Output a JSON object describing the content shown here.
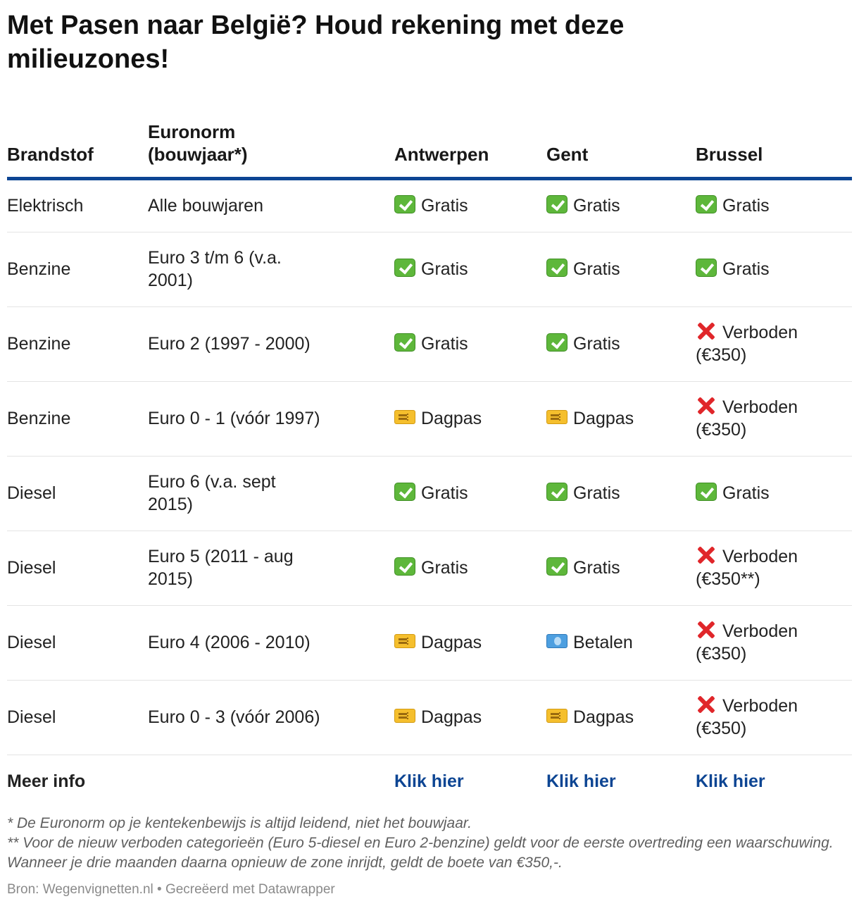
{
  "title": "Met Pasen naar België? Houd rekening met deze milieuzones!",
  "colors": {
    "accent": "#0d4593",
    "check": "#5eb73b",
    "cross": "#e0262a",
    "ticket": "#f5bf2d",
    "money": "#4d9fe0"
  },
  "table": {
    "headers": {
      "fuel": "Brandstof",
      "norm": "Euronorm (bouwjaar*)",
      "antwerpen": "Antwerpen",
      "gent": "Gent",
      "brussel": "Brussel"
    },
    "rows": [
      {
        "fuel": "Elektrisch",
        "norm": "Alle bouwjaren",
        "antwerpen": {
          "icon": "check-icon",
          "text": "Gratis"
        },
        "gent": {
          "icon": "check-icon",
          "text": "Gratis"
        },
        "brussel": {
          "icon": "check-icon",
          "text": "Gratis"
        }
      },
      {
        "fuel": "Benzine",
        "norm": "Euro 3 t/m 6 (v.a. 2001)",
        "antwerpen": {
          "icon": "check-icon",
          "text": "Gratis"
        },
        "gent": {
          "icon": "check-icon",
          "text": "Gratis"
        },
        "brussel": {
          "icon": "check-icon",
          "text": "Gratis"
        }
      },
      {
        "fuel": "Benzine",
        "norm": "Euro 2 (1997 - 2000)",
        "antwerpen": {
          "icon": "check-icon",
          "text": "Gratis"
        },
        "gent": {
          "icon": "check-icon",
          "text": "Gratis"
        },
        "brussel": {
          "icon": "cross-icon",
          "text": "Verboden (€350)"
        }
      },
      {
        "fuel": "Benzine",
        "norm": "Euro 0 - 1 (vóór 1997)",
        "antwerpen": {
          "icon": "ticket-icon",
          "text": "Dagpas"
        },
        "gent": {
          "icon": "ticket-icon",
          "text": "Dagpas"
        },
        "brussel": {
          "icon": "cross-icon",
          "text": "Verboden (€350)"
        }
      },
      {
        "fuel": "Diesel",
        "norm": "Euro 6 (v.a. sept 2015)",
        "antwerpen": {
          "icon": "check-icon",
          "text": "Gratis"
        },
        "gent": {
          "icon": "check-icon",
          "text": "Gratis"
        },
        "brussel": {
          "icon": "check-icon",
          "text": "Gratis"
        }
      },
      {
        "fuel": "Diesel",
        "norm": "Euro 5 (2011 - aug 2015)",
        "antwerpen": {
          "icon": "check-icon",
          "text": "Gratis"
        },
        "gent": {
          "icon": "check-icon",
          "text": "Gratis"
        },
        "brussel": {
          "icon": "cross-icon",
          "text": "Verboden (€350**)"
        }
      },
      {
        "fuel": "Diesel",
        "norm": "Euro 4 (2006 - 2010)",
        "antwerpen": {
          "icon": "ticket-icon",
          "text": "Dagpas"
        },
        "gent": {
          "icon": "money-icon",
          "text": "Betalen"
        },
        "brussel": {
          "icon": "cross-icon",
          "text": "Verboden (€350)"
        }
      },
      {
        "fuel": "Diesel",
        "norm": "Euro 0 - 3 (vóór 2006)",
        "antwerpen": {
          "icon": "ticket-icon",
          "text": "Dagpas"
        },
        "gent": {
          "icon": "ticket-icon",
          "text": "Dagpas"
        },
        "brussel": {
          "icon": "cross-icon",
          "text": "Verboden (€350)"
        }
      }
    ],
    "info_row": {
      "label": "Meer info",
      "antwerpen_link": "Klik hier",
      "gent_link": "Klik hier",
      "brussel_link": "Klik hier"
    }
  },
  "notes": {
    "note1": "* De Euronorm op je kentekenbewijs is altijd leidend, niet het bouwjaar.",
    "note2": "** Voor de nieuw verboden categorieën (Euro 5-diesel en Euro 2-benzine) geldt voor de eerste overtreding een waarschuwing. Wanneer je drie maanden daarna opnieuw de zone inrijdt, geldt de boete van €350,-."
  },
  "source": "Bron: Wegenvignetten.nl • Gecreëerd met Datawrapper"
}
